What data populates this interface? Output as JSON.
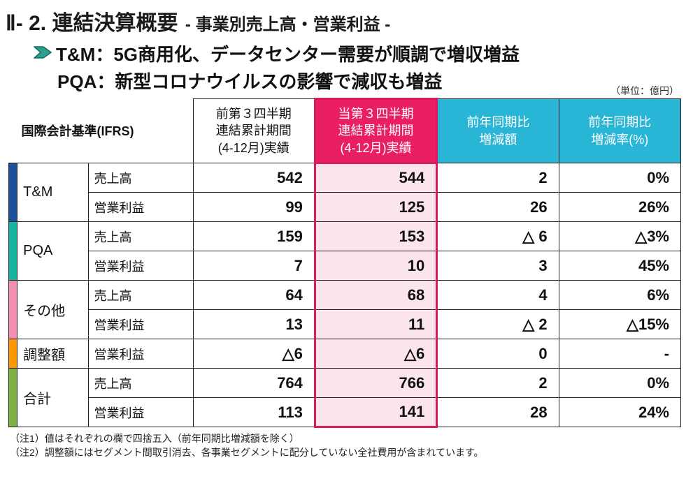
{
  "title": {
    "main": "Ⅱ- 2. 連結決算概要",
    "sub": "- 事業別売上高・営業利益 -"
  },
  "bullets": {
    "line1": "T&M：5G商用化、データセンター需要が順調で増収増益",
    "line2": "PQA：新型コロナウイルスの影響で減収も増益",
    "icon_fill": "#2e9e8f",
    "icon_stroke": "#156b5f"
  },
  "unit_label": "（単位：億円）",
  "table": {
    "header_left": "国際会計基準(IFRS)",
    "columns": [
      {
        "l1": "前第３四半期",
        "l2": "連結累計期間",
        "l3": "(4-12月)実績",
        "bg": "#ffffff",
        "fg": "#111111"
      },
      {
        "l1": "当第３四半期",
        "l2": "連結累計期間",
        "l3": "(4-12月)実績",
        "bg": "#e91e63",
        "fg": "#ffffff"
      },
      {
        "l1": "前年同期比",
        "l2": "増減額",
        "l3": "",
        "bg": "#29b6d6",
        "fg": "#ffffff"
      },
      {
        "l1": "前年同期比",
        "l2": "増減率(%)",
        "l3": "",
        "bg": "#29b6d6",
        "fg": "#ffffff"
      }
    ],
    "highlight_col_bg": "#fce4ec",
    "segments": [
      {
        "spine_color": "#1e4e9c",
        "name": "T&M",
        "rows": [
          {
            "metric": "売上高",
            "v1": "542",
            "v2": "544",
            "v3": "2",
            "v4": "0%"
          },
          {
            "metric": "営業利益",
            "v1": "99",
            "v2": "125",
            "v3": "26",
            "v4": "26%"
          }
        ]
      },
      {
        "spine_color": "#17b3a3",
        "name": "PQA",
        "rows": [
          {
            "metric": "売上高",
            "v1": "159",
            "v2": "153",
            "v3": "△ 6",
            "v4": "△3%"
          },
          {
            "metric": "営業利益",
            "v1": "7",
            "v2": "10",
            "v3": "3",
            "v4": "45%"
          }
        ]
      },
      {
        "spine_color": "#f48fb1",
        "name": "その他",
        "rows": [
          {
            "metric": "売上高",
            "v1": "64",
            "v2": "68",
            "v3": "4",
            "v4": "6%"
          },
          {
            "metric": "営業利益",
            "v1": "13",
            "v2": "11",
            "v3": "△ 2",
            "v4": "△15%"
          }
        ]
      },
      {
        "spine_color": "#ff9800",
        "name": "調整額",
        "rows": [
          {
            "metric": "営業利益",
            "v1": "△6",
            "v2": "△6",
            "v3": "0",
            "v4": "-"
          }
        ]
      },
      {
        "spine_color": "#7cb342",
        "name": "合計",
        "rows": [
          {
            "metric": "売上高",
            "v1": "764",
            "v2": "766",
            "v3": "2",
            "v4": "0%"
          },
          {
            "metric": "営業利益",
            "v1": "113",
            "v2": "141",
            "v3": "28",
            "v4": "24%"
          }
        ]
      }
    ]
  },
  "notes": {
    "n1": "（注1）値はそれぞれの欄で四捨五入（前年同期比増減額を除く）",
    "n2": "（注2）調整額にはセグメント間取引消去、各事業セグメントに配分していない全社費用が含まれています。"
  }
}
